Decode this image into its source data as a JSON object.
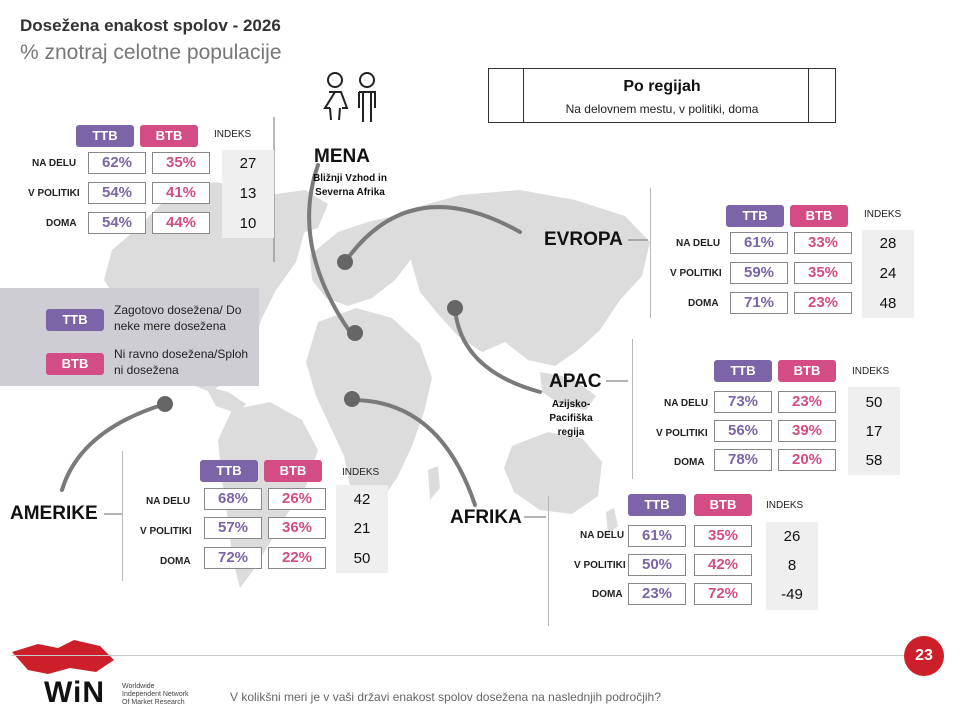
{
  "header": {
    "title": "Dosežena enakost spolov - 2026",
    "subtitle": "% znotraj celotne populacije"
  },
  "region_box": {
    "title": "Po regijah",
    "subtitle": "Na delovnem mestu, v politiki, doma"
  },
  "legend": {
    "ttb_label": "TTB",
    "ttb_text": "Zagotovo dosežena/ Do neke mere dosežena",
    "btb_label": "BTB",
    "btb_text": "Ni ravno dosežena/Sploh ni dosežena"
  },
  "colors": {
    "ttb": "#7b64a8",
    "btb": "#d34c84",
    "map": "#dcdcdc",
    "accent": "#cc1f2a"
  },
  "icons": [
    "woman-icon",
    "man-icon"
  ],
  "table_headers": {
    "ttb": "TTB",
    "btb": "BTB",
    "index": "INDEKS"
  },
  "chart_data": {
    "type": "table",
    "columns": [
      "TTB",
      "BTB",
      "INDEKS"
    ],
    "row_labels": [
      "NA DELU",
      "V POLITIKI",
      "DOMA"
    ],
    "regions": [
      {
        "name": "MENA",
        "sub": "Bližnji Vzhod in Severna Afrika",
        "rows": [
          {
            "label": "NA DELU",
            "ttb": "62%",
            "btb": "35%",
            "index": "27"
          },
          {
            "label": "V POLITIKI",
            "ttb": "54%",
            "btb": "41%",
            "index": "13"
          },
          {
            "label": "DOMA",
            "ttb": "54%",
            "btb": "44%",
            "index": "10"
          }
        ]
      },
      {
        "name": "EVROPA",
        "sub": "",
        "rows": [
          {
            "label": "NA DELU",
            "ttb": "61%",
            "btb": "33%",
            "index": "28"
          },
          {
            "label": "V POLITIKI",
            "ttb": "59%",
            "btb": "35%",
            "index": "24"
          },
          {
            "label": "DOMA",
            "ttb": "71%",
            "btb": "23%",
            "index": "48"
          }
        ]
      },
      {
        "name": "APAC",
        "sub": "Azijsko-Pacifiška regija",
        "rows": [
          {
            "label": "NA DELU",
            "ttb": "73%",
            "btb": "23%",
            "index": "50"
          },
          {
            "label": "V POLITIKI",
            "ttb": "56%",
            "btb": "39%",
            "index": "17"
          },
          {
            "label": "DOMA",
            "ttb": "78%",
            "btb": "20%",
            "index": "58"
          }
        ]
      },
      {
        "name": "AMERIKE",
        "sub": "",
        "rows": [
          {
            "label": "NA DELU",
            "ttb": "68%",
            "btb": "26%",
            "index": "42"
          },
          {
            "label": "V POLITIKI",
            "ttb": "57%",
            "btb": "36%",
            "index": "21"
          },
          {
            "label": "DOMA",
            "ttb": "72%",
            "btb": "22%",
            "index": "50"
          }
        ]
      },
      {
        "name": "AFRIKA",
        "sub": "",
        "rows": [
          {
            "label": "NA DELU",
            "ttb": "61%",
            "btb": "35%",
            "index": "26"
          },
          {
            "label": "V POLITIKI",
            "ttb": "50%",
            "btb": "42%",
            "index": "8"
          },
          {
            "label": "DOMA",
            "ttb": "23%",
            "btb": "72%",
            "index": "-49"
          }
        ]
      }
    ]
  },
  "footer": {
    "page_number": "23",
    "logo_text": "WiN",
    "logo_sub": [
      "Worldwide",
      "Independent Network",
      "Of Market Research"
    ],
    "question": "V kolikšni meri je v vaši državi enakost spolov dosežena na naslednjih področjih?"
  }
}
